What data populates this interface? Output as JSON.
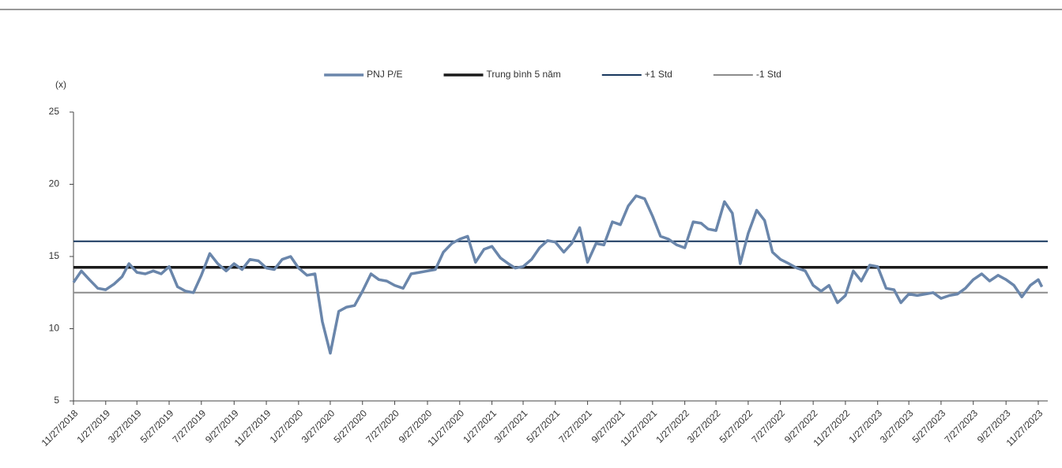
{
  "chart_data": {
    "type": "line",
    "y_label": "(x)",
    "ylim": [
      5,
      25
    ],
    "yticks": [
      5,
      10,
      15,
      20,
      25
    ],
    "xlim": [
      "11/27/2018",
      "12/15/2023"
    ],
    "xticks": [
      "11/27/2018",
      "1/27/2019",
      "3/27/2019",
      "5/27/2019",
      "7/27/2019",
      "9/27/2019",
      "11/27/2019",
      "1/27/2020",
      "3/27/2020",
      "5/27/2020",
      "7/27/2020",
      "9/27/2020",
      "11/27/2020",
      "1/27/2021",
      "3/27/2021",
      "5/27/2021",
      "7/27/2021",
      "9/27/2021",
      "11/27/2021",
      "1/27/2022",
      "3/27/2022",
      "5/27/2022",
      "7/27/2022",
      "9/27/2022",
      "11/27/2022",
      "1/27/2023",
      "3/27/2023",
      "5/27/2023",
      "7/27/2023",
      "9/27/2023",
      "11/27/2023"
    ],
    "x": [
      "11/27/2018",
      "12/12/2018",
      "12/27/2018",
      "1/12/2019",
      "1/27/2019",
      "2/12/2019",
      "2/27/2019",
      "3/12/2019",
      "3/27/2019",
      "4/12/2019",
      "4/27/2019",
      "5/12/2019",
      "5/27/2019",
      "6/12/2019",
      "6/27/2019",
      "7/12/2019",
      "7/27/2019",
      "8/12/2019",
      "8/27/2019",
      "9/12/2019",
      "9/27/2019",
      "10/12/2019",
      "10/27/2019",
      "11/12/2019",
      "11/27/2019",
      "12/12/2019",
      "12/27/2019",
      "1/12/2020",
      "1/27/2020",
      "2/12/2020",
      "2/27/2020",
      "3/12/2020",
      "3/27/2020",
      "4/12/2020",
      "4/27/2020",
      "5/12/2020",
      "5/27/2020",
      "6/12/2020",
      "6/27/2020",
      "7/12/2020",
      "7/27/2020",
      "8/12/2020",
      "8/27/2020",
      "9/12/2020",
      "9/27/2020",
      "10/12/2020",
      "10/27/2020",
      "11/12/2020",
      "11/27/2020",
      "12/12/2020",
      "12/27/2020",
      "1/12/2021",
      "1/27/2021",
      "2/12/2021",
      "2/27/2021",
      "3/12/2021",
      "3/27/2021",
      "4/12/2021",
      "4/27/2021",
      "5/12/2021",
      "5/27/2021",
      "6/12/2021",
      "6/27/2021",
      "7/12/2021",
      "7/27/2021",
      "8/12/2021",
      "8/27/2021",
      "9/12/2021",
      "9/27/2021",
      "10/12/2021",
      "10/27/2021",
      "11/12/2021",
      "11/27/2021",
      "12/12/2021",
      "12/27/2021",
      "1/12/2022",
      "1/27/2022",
      "2/12/2022",
      "2/27/2022",
      "3/12/2022",
      "3/27/2022",
      "4/12/2022",
      "4/27/2022",
      "5/12/2022",
      "5/27/2022",
      "6/12/2022",
      "6/27/2022",
      "7/12/2022",
      "7/27/2022",
      "8/12/2022",
      "8/27/2022",
      "9/12/2022",
      "9/27/2022",
      "10/12/2022",
      "10/27/2022",
      "11/12/2022",
      "11/27/2022",
      "12/12/2022",
      "12/27/2022",
      "1/12/2023",
      "1/27/2023",
      "2/12/2023",
      "2/27/2023",
      "3/12/2023",
      "3/27/2023",
      "4/12/2023",
      "4/27/2023",
      "5/12/2023",
      "5/27/2023",
      "6/12/2023",
      "6/27/2023",
      "7/12/2023",
      "7/27/2023",
      "8/12/2023",
      "8/27/2023",
      "9/12/2023",
      "9/27/2023",
      "10/12/2023",
      "10/27/2023",
      "11/12/2023",
      "11/27/2023",
      "12/4/2023"
    ],
    "series": [
      {
        "name": "PNJ P/E",
        "color": "#6a86ab",
        "values": [
          13.2,
          14.0,
          13.4,
          12.8,
          12.7,
          13.1,
          13.6,
          14.5,
          13.9,
          13.8,
          14.0,
          13.8,
          14.3,
          12.9,
          12.6,
          12.5,
          13.7,
          15.2,
          14.5,
          14.0,
          14.5,
          14.1,
          14.8,
          14.7,
          14.2,
          14.1,
          14.8,
          15.0,
          14.2,
          13.7,
          13.8,
          10.5,
          8.3,
          11.2,
          11.5,
          11.6,
          12.6,
          13.8,
          13.4,
          13.3,
          13.0,
          12.8,
          13.8,
          13.9,
          14.0,
          14.1,
          15.3,
          15.9,
          16.2,
          16.4,
          14.6,
          15.5,
          15.7,
          14.9,
          14.5,
          14.2,
          14.3,
          14.8,
          15.6,
          16.1,
          16.0,
          15.3,
          15.9,
          17.0,
          14.6,
          15.9,
          15.8,
          17.4,
          17.2,
          18.5,
          19.2,
          19.0,
          17.8,
          16.4,
          16.2,
          15.8,
          15.6,
          17.4,
          17.3,
          16.9,
          16.8,
          18.8,
          18.0,
          14.5,
          16.6,
          18.2,
          17.5,
          15.3,
          14.8,
          14.5,
          14.2,
          14.0,
          13.0,
          12.6,
          13.0,
          11.8,
          12.3,
          14.0,
          13.3,
          14.4,
          14.3,
          12.8,
          12.7,
          11.8,
          12.4,
          12.3,
          12.4,
          12.5,
          12.1,
          12.3,
          12.4,
          12.8,
          13.4,
          13.8,
          13.3,
          13.7,
          13.4,
          13.0,
          12.2,
          13.0,
          13.4,
          12.9
        ]
      }
    ],
    "reference_lines": [
      {
        "name": "Trung bình 5 năm",
        "color": "#1a1a1a",
        "value": 14.25
      },
      {
        "name": "+1 Std",
        "color": "#17375e",
        "value": 16.05
      },
      {
        "name": "-1 Std",
        "color": "#8c8c8c",
        "value": 12.5
      }
    ]
  }
}
